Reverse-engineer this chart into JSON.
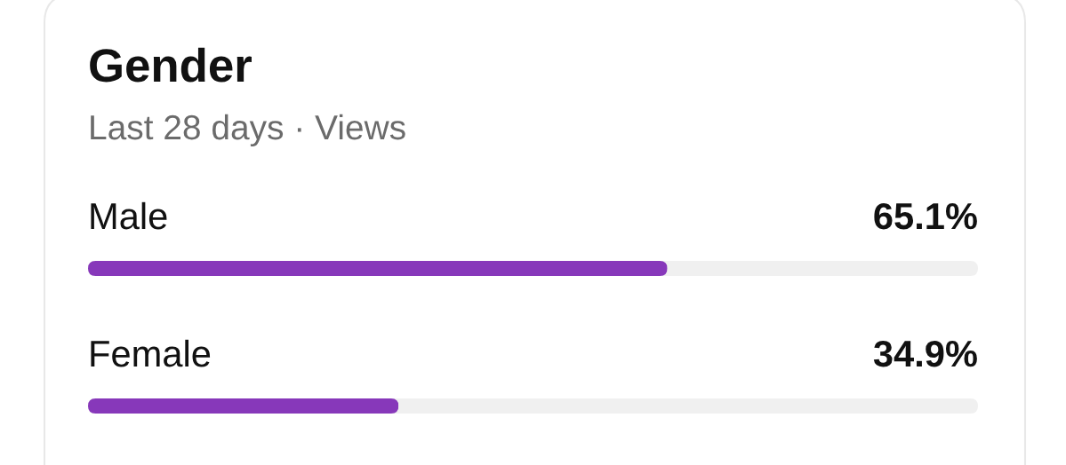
{
  "chart_data": {
    "type": "bar",
    "orientation": "horizontal",
    "title": "Gender",
    "subtitle": "Last 28 days · Views",
    "categories": [
      "Male",
      "Female"
    ],
    "values": [
      65.1,
      34.9
    ],
    "color": "#8738ba",
    "value_labels": [
      "65.1%",
      "34.9%"
    ],
    "xlim": [
      0,
      100
    ],
    "tick_labels": false
  }
}
